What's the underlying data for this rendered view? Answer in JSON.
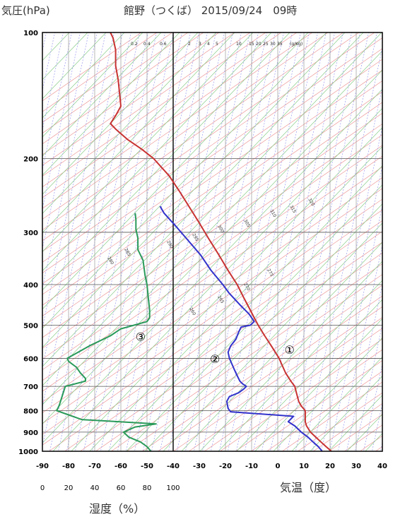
{
  "header": {
    "ylabel": "気圧(hPa)",
    "title": "館野（つくば） 2015/09/24　09時"
  },
  "axes": {
    "xlabel": "気温（度）",
    "humidity_label": "湿度（%）"
  },
  "chart_data": {
    "type": "line",
    "title": "館野（つくば） 2015/09/24　09時",
    "ylabel": "気圧(hPa)",
    "xlabel": "気温（度）",
    "xlim": [
      -90,
      40
    ],
    "ylim": [
      1000,
      100
    ],
    "y_scale": "log",
    "grid": true,
    "y_ticks": [
      1000,
      900,
      800,
      700,
      600,
      500,
      400,
      300,
      200,
      100
    ],
    "x_ticks": [
      -90,
      -80,
      -70,
      -60,
      -50,
      -40,
      -30,
      -20,
      -10,
      0,
      10,
      20,
      30,
      40
    ],
    "humidity_ticks": [
      0,
      20,
      40,
      60,
      80,
      100
    ],
    "mixing_ratio_labels": [
      "0.2",
      "0.4",
      "0.6",
      "1",
      "2",
      "3",
      "4",
      "5",
      "10",
      "15",
      "20",
      "25",
      "30",
      "35",
      "(g/Kg)"
    ],
    "isentrope_labels": [
      "320",
      "315",
      "310",
      "305",
      "300",
      "295",
      "290",
      "285",
      "280",
      "275",
      "270",
      "265",
      "260"
    ],
    "series": [
      {
        "name": "①",
        "color": "#c83232",
        "points": [
          [
            1000,
            20.5
          ],
          [
            975,
            18.5
          ],
          [
            950,
            16.5
          ],
          [
            925,
            14.5
          ],
          [
            900,
            12.5
          ],
          [
            870,
            11
          ],
          [
            850,
            10.5
          ],
          [
            825,
            10.5
          ],
          [
            800,
            10.5
          ],
          [
            780,
            9
          ],
          [
            760,
            8
          ],
          [
            740,
            7.5
          ],
          [
            720,
            7
          ],
          [
            700,
            6.5
          ],
          [
            680,
            5
          ],
          [
            650,
            3
          ],
          [
            620,
            1.5
          ],
          [
            600,
            0.5
          ],
          [
            560,
            -2.5
          ],
          [
            530,
            -5
          ],
          [
            500,
            -7.5
          ],
          [
            480,
            -9
          ],
          [
            460,
            -10.5
          ],
          [
            430,
            -13
          ],
          [
            400,
            -15.5
          ],
          [
            370,
            -19
          ],
          [
            340,
            -22.5
          ],
          [
            310,
            -26.5
          ],
          [
            285,
            -30
          ],
          [
            260,
            -34
          ],
          [
            240,
            -37.5
          ],
          [
            220,
            -41.5
          ],
          [
            200,
            -47.5
          ],
          [
            190,
            -52
          ],
          [
            180,
            -57.5
          ],
          [
            170,
            -62
          ],
          [
            165,
            -64
          ],
          [
            158,
            -62
          ],
          [
            150,
            -60
          ],
          [
            140,
            -60.5
          ],
          [
            130,
            -61
          ],
          [
            120,
            -62
          ],
          [
            110,
            -62
          ],
          [
            103,
            -63
          ],
          [
            100,
            -64
          ]
        ]
      },
      {
        "name": "②",
        "color": "#3232cc",
        "points": [
          [
            1000,
            17
          ],
          [
            975,
            15.5
          ],
          [
            950,
            13.5
          ],
          [
            925,
            11.5
          ],
          [
            900,
            9
          ],
          [
            870,
            6.5
          ],
          [
            850,
            4
          ],
          [
            825,
            6
          ],
          [
            805,
            -18
          ],
          [
            790,
            -19
          ],
          [
            760,
            -19.5
          ],
          [
            740,
            -18.5
          ],
          [
            725,
            -15
          ],
          [
            710,
            -13
          ],
          [
            700,
            -12
          ],
          [
            690,
            -13.5
          ],
          [
            680,
            -14.5
          ],
          [
            660,
            -15.5
          ],
          [
            640,
            -16.5
          ],
          [
            620,
            -17.5
          ],
          [
            600,
            -18.5
          ],
          [
            580,
            -19
          ],
          [
            560,
            -18
          ],
          [
            540,
            -16
          ],
          [
            520,
            -15
          ],
          [
            505,
            -14
          ],
          [
            500,
            -10.5
          ],
          [
            490,
            -9
          ],
          [
            470,
            -11
          ],
          [
            450,
            -14
          ],
          [
            420,
            -18.5
          ],
          [
            400,
            -21
          ],
          [
            370,
            -25.5
          ],
          [
            340,
            -29.5
          ],
          [
            310,
            -35
          ],
          [
            290,
            -39
          ],
          [
            270,
            -43.5
          ],
          [
            260,
            -45
          ]
        ]
      },
      {
        "name": "③",
        "color": "#2a9a5a",
        "humidity_points": [
          [
            1000,
            83
          ],
          [
            975,
            80
          ],
          [
            950,
            75
          ],
          [
            925,
            66
          ],
          [
            900,
            62
          ],
          [
            875,
            71
          ],
          [
            860,
            87
          ],
          [
            840,
            30
          ],
          [
            800,
            11
          ],
          [
            775,
            13
          ],
          [
            700,
            17.5
          ],
          [
            680,
            33
          ],
          [
            670,
            33
          ],
          [
            650,
            29
          ],
          [
            630,
            26
          ],
          [
            610,
            20
          ],
          [
            600,
            19
          ],
          [
            560,
            36
          ],
          [
            530,
            52
          ],
          [
            510,
            60
          ],
          [
            500,
            70
          ],
          [
            490,
            80
          ],
          [
            480,
            82
          ],
          [
            460,
            82
          ],
          [
            430,
            81
          ],
          [
            400,
            80
          ],
          [
            380,
            78.5
          ],
          [
            350,
            77
          ],
          [
            330,
            73
          ],
          [
            310,
            73
          ],
          [
            295,
            71.5
          ],
          [
            280,
            71.5
          ],
          [
            270,
            71
          ]
        ]
      }
    ],
    "annotations": [
      "①",
      "②",
      "③"
    ]
  }
}
